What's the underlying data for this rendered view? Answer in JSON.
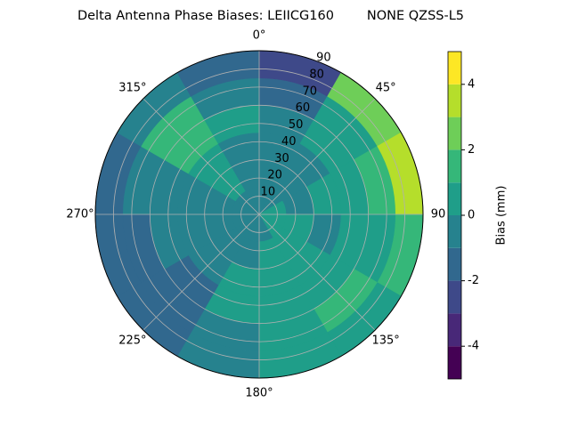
{
  "chart_data": {
    "type": "polar_contour",
    "title": "Delta Antenna Phase Biases: LEIICG160        NONE QZSS-L5",
    "theta_ticks": [
      {
        "value": 0,
        "label": "0°"
      },
      {
        "value": 45,
        "label": "45°"
      },
      {
        "value": 90,
        "label": "90"
      },
      {
        "value": 135,
        "label": "135°"
      },
      {
        "value": 180,
        "label": "180°"
      },
      {
        "value": 225,
        "label": "225°"
      },
      {
        "value": 270,
        "label": "270°"
      },
      {
        "value": 315,
        "label": "315°"
      }
    ],
    "rlim": [
      0,
      90
    ],
    "rticks": [
      10,
      20,
      30,
      40,
      50,
      60,
      70,
      80,
      90
    ],
    "grid": true,
    "azimuth": [
      15,
      45,
      75,
      105,
      135,
      165,
      195,
      225,
      255,
      285,
      315,
      345
    ],
    "zenith": [
      7.5,
      22.5,
      37.5,
      52.5,
      67.5,
      82.5
    ],
    "values": [
      [
        -0.5,
        -0.5,
        0.5,
        0.5,
        0.5,
        -0.5,
        -0.5,
        -0.5,
        -0.5,
        -0.5,
        -0.5,
        -0.5
      ],
      [
        -0.5,
        -0.5,
        -0.5,
        0.5,
        0.5,
        0.5,
        -0.5,
        -0.5,
        -0.5,
        -0.5,
        0.5,
        -0.5
      ],
      [
        -0.5,
        -0.5,
        0.5,
        -0.5,
        0.5,
        0.5,
        0.5,
        -0.5,
        -0.5,
        -0.5,
        0.5,
        -0.5
      ],
      [
        -0.5,
        0.5,
        0.5,
        0.5,
        0.5,
        0.5,
        0.5,
        -1.5,
        -0.5,
        -0.5,
        1.5,
        0.5
      ],
      [
        -1.5,
        0.5,
        1.5,
        0.5,
        1.5,
        0.5,
        -0.5,
        -1.5,
        -1.5,
        -0.5,
        1.5,
        -0.5
      ],
      [
        -2.5,
        2.5,
        3.5,
        1.5,
        0.5,
        0.5,
        -0.5,
        -1.5,
        -1.5,
        -1.5,
        -0.5,
        -1.5
      ]
    ],
    "levels": [
      -5,
      -4,
      -3,
      -2,
      -1,
      0,
      1,
      2,
      3,
      4,
      5
    ],
    "colors": [
      "#440154",
      "#482878",
      "#3e4989",
      "#31688e",
      "#26828e",
      "#1f9e89",
      "#35b779",
      "#6ece58",
      "#b5de2b",
      "#fde725"
    ],
    "clim": [
      -5,
      5
    ],
    "cticks": [
      -4,
      -2,
      0,
      2,
      4
    ],
    "colorbar_label": "Bias (mm)"
  }
}
